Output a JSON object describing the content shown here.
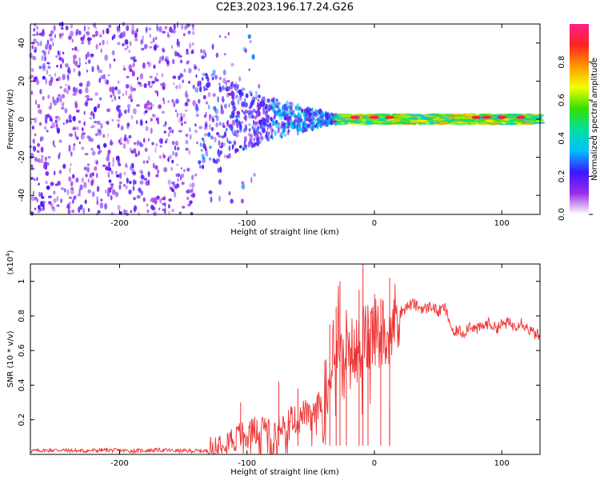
{
  "title": "C2E3.2023.196.17.24.G26",
  "chart_data": [
    {
      "type": "heatmap",
      "xlabel": "Height of straight line (km)",
      "ylabel": "Frequency (Hz)",
      "xlim": [
        -270,
        130
      ],
      "ylim": [
        -50,
        50
      ],
      "xticks": [
        -200,
        -100,
        0,
        100
      ],
      "yticks": [
        -40,
        -20,
        0,
        20,
        40
      ],
      "colorbar": {
        "label": "Normalized spectral amplitude",
        "range": [
          0,
          1
        ],
        "ticks": [
          0.0,
          0.2,
          0.4,
          0.6,
          0.8
        ],
        "colors": [
          "#ffffff",
          "#9a2ce8",
          "#3b16ff",
          "#00c0ff",
          "#00e0a0",
          "#33e000",
          "#f0ff00",
          "#ff9900",
          "#ff2222",
          "#ff1f8a"
        ]
      },
      "regions": [
        {
          "x": [
            -270,
            -140
          ],
          "description_free": true,
          "spread_hz": 50,
          "amplitude": 0.15
        },
        {
          "x": [
            -140,
            -80
          ],
          "spread_hz": 25,
          "amplitude": 0.25
        },
        {
          "x": [
            -80,
            -30
          ],
          "spread_hz": 10,
          "amplitude": 0.3
        },
        {
          "x": [
            -30,
            130
          ],
          "spread_hz": 2,
          "amplitude": 0.6
        }
      ],
      "grid": false
    },
    {
      "type": "line",
      "xlabel": "Height of straight line (km)",
      "ylabel": "SNR (10 * v/v)",
      "yscale_label": "(x10",
      "yscale_exp": "4",
      "yscale_close": ")",
      "xlim": [
        -270,
        130
      ],
      "ylim": [
        0,
        1.1
      ],
      "xticks": [
        -200,
        -100,
        0,
        100
      ],
      "yticks": [
        0.2,
        0.4,
        0.6,
        0.8,
        1
      ],
      "series": [
        {
          "color": "#ee3333",
          "x": [
            -270,
            -250,
            -230,
            -210,
            -190,
            -170,
            -150,
            -140,
            -130,
            -125,
            -120,
            -115,
            -110,
            -105,
            -100,
            -95,
            -90,
            -85,
            -80,
            -75,
            -70,
            -65,
            -60,
            -55,
            -50,
            -45,
            -40,
            -35,
            -32,
            -30,
            -28,
            -25,
            -22,
            -20,
            -18,
            -15,
            -12,
            -10,
            -8,
            -5,
            -2,
            0,
            3,
            6,
            10,
            12,
            15,
            18,
            20,
            25,
            30,
            35,
            40,
            45,
            50,
            55,
            60,
            62,
            65,
            70,
            75,
            80,
            85,
            90,
            95,
            100,
            105,
            110,
            115,
            120,
            125,
            130
          ],
          "values": [
            0.02,
            0.025,
            0.02,
            0.025,
            0.02,
            0.025,
            0.02,
            0.02,
            0.02,
            0.05,
            0.08,
            0.1,
            0.08,
            0.12,
            0.1,
            0.15,
            0.12,
            0.18,
            0.12,
            0.2,
            0.15,
            0.22,
            0.18,
            0.25,
            0.2,
            0.28,
            0.3,
            0.45,
            0.7,
            0.55,
            0.8,
            0.45,
            0.65,
            0.5,
            0.6,
            0.55,
            0.7,
            0.6,
            0.7,
            0.65,
            0.7,
            0.72,
            0.68,
            0.7,
            0.75,
            0.72,
            0.78,
            0.8,
            0.82,
            0.85,
            0.87,
            0.85,
            0.84,
            0.86,
            0.82,
            0.85,
            0.75,
            0.68,
            0.72,
            0.7,
            0.75,
            0.72,
            0.74,
            0.76,
            0.73,
            0.75,
            0.76,
            0.74,
            0.77,
            0.73,
            0.7,
            0.68
          ],
          "spikes": [
            {
              "x": -105,
              "value": 0.3
            },
            {
              "x": -75,
              "value": 0.42
            },
            {
              "x": -60,
              "value": 0.38
            },
            {
              "x": -35,
              "value": 0.75
            },
            {
              "x": -30,
              "value": 0.85
            },
            {
              "x": -27,
              "value": 1.0
            },
            {
              "x": -22,
              "value": 0.8
            },
            {
              "x": -12,
              "value": 0.95
            },
            {
              "x": -9,
              "value": 1.1
            },
            {
              "x": -5,
              "value": 0.7
            },
            {
              "x": 5,
              "value": 0.9
            },
            {
              "x": 12,
              "value": 1.02
            },
            {
              "x": 12,
              "value": 0.3
            }
          ]
        }
      ],
      "grid": false
    }
  ]
}
